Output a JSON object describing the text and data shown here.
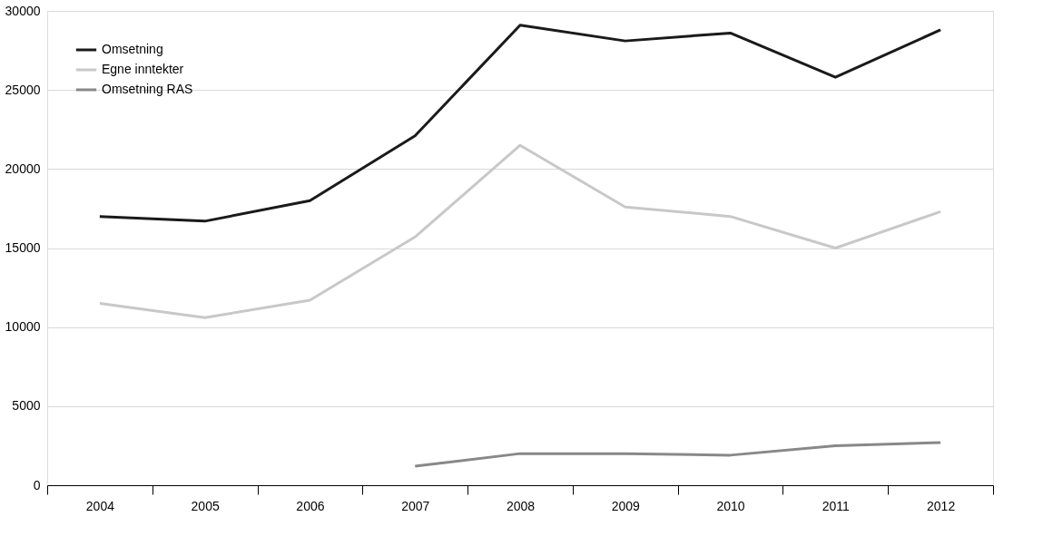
{
  "chart_data": {
    "type": "line",
    "categories": [
      "2004",
      "2005",
      "2006",
      "2007",
      "2008",
      "2009",
      "2010",
      "2011",
      "2012"
    ],
    "series": [
      {
        "name": "Omsetning",
        "color": "#1a1a1a",
        "values": [
          17000,
          16700,
          18000,
          22100,
          29100,
          28100,
          28600,
          25800,
          28800
        ]
      },
      {
        "name": "Egne inntekter",
        "color": "#c8c8c8",
        "values": [
          11500,
          10600,
          11700,
          15700,
          21500,
          17600,
          17000,
          15000,
          17300
        ]
      },
      {
        "name": "Omsetning RAS",
        "color": "#888888",
        "values": [
          null,
          null,
          null,
          1200,
          2000,
          2000,
          1900,
          2500,
          2700
        ]
      }
    ],
    "ylim": [
      0,
      30000
    ],
    "yticks": [
      0,
      5000,
      10000,
      15000,
      20000,
      25000,
      30000
    ],
    "grid": "y",
    "legend": "top left",
    "line_style": "solid",
    "marker": "none"
  }
}
